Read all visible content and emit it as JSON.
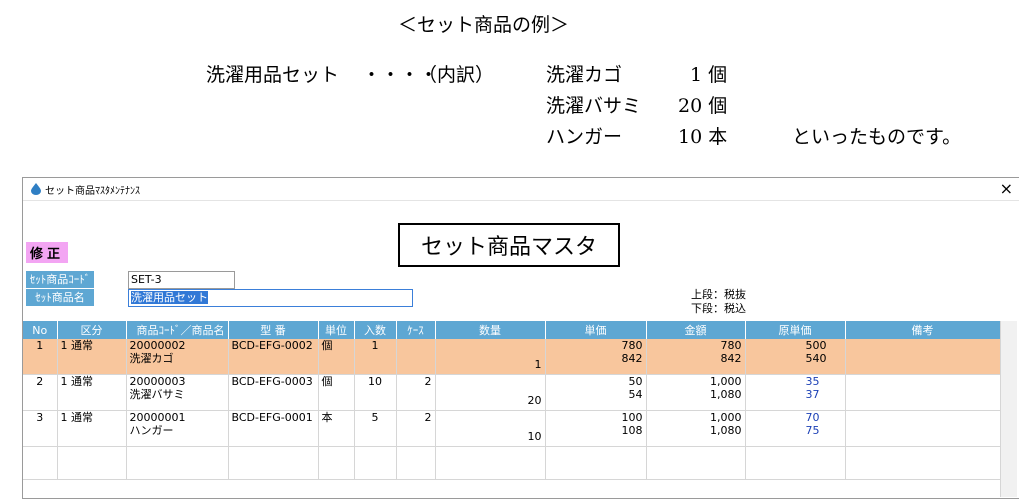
{
  "intro": {
    "title": "＜セット商品の例＞",
    "set_name": "洗濯用品セット",
    "dots": "・・・・",
    "breakdown_label": "（内訳）",
    "items": [
      {
        "name": "洗濯カゴ",
        "qty": "1 個"
      },
      {
        "name": "洗濯バサミ",
        "qty": "20 個"
      },
      {
        "name": "ハンガー",
        "qty": "10 本"
      }
    ],
    "closing": "といったものです。"
  },
  "window": {
    "title": "セット商品ﾏｽﾀﾒﾝﾃﾅﾝｽ",
    "close": "×",
    "mode": "修正",
    "screen_title": "セット商品マスタ",
    "code_label": "ｾｯﾄ商品ｺｰﾄﾞ",
    "code_value": "SET-3",
    "name_label": "ｾｯﾄ商品名",
    "name_value": "洗濯用品セット",
    "tax_upper": "上段：税抜",
    "tax_lower": "下段：税込"
  },
  "grid": {
    "headers": [
      "No",
      "区分",
      "商品ｺｰﾄﾞ／商品名",
      "型 番",
      "単位",
      "入数",
      "ｹｰｽ",
      "数量",
      "単価",
      "金額",
      "原単価",
      "備考"
    ],
    "rows": [
      {
        "no": "1",
        "kubun": "1 通常",
        "code": "20000002",
        "name": "洗濯カゴ",
        "model": "BCD-EFG-0002",
        "unit": "個",
        "irisu": "1",
        "case": "",
        "qty": "1",
        "price_ex": "780",
        "price_in": "842",
        "amt_ex": "780",
        "amt_in": "842",
        "cost_ex": "500",
        "cost_in": "540",
        "note": ""
      },
      {
        "no": "2",
        "kubun": "1 通常",
        "code": "20000003",
        "name": "洗濯バサミ",
        "model": "BCD-EFG-0003",
        "unit": "個",
        "irisu": "10",
        "case": "2",
        "qty": "20",
        "price_ex": "50",
        "price_in": "54",
        "amt_ex": "1,000",
        "amt_in": "1,080",
        "cost_ex": "35",
        "cost_in": "37",
        "note": ""
      },
      {
        "no": "3",
        "kubun": "1 通常",
        "code": "20000001",
        "name": "ハンガー",
        "model": "BCD-EFG-0001",
        "unit": "本",
        "irisu": "5",
        "case": "2",
        "qty": "10",
        "price_ex": "100",
        "price_in": "108",
        "amt_ex": "1,000",
        "amt_in": "1,080",
        "cost_ex": "70",
        "cost_in": "75",
        "note": ""
      }
    ]
  },
  "colors": {
    "header_blue": "#5ea7d3",
    "mode_pink": "#f3a5f3",
    "highlight_row": "#f8c69d",
    "cost_text": "#1a3fb5"
  }
}
